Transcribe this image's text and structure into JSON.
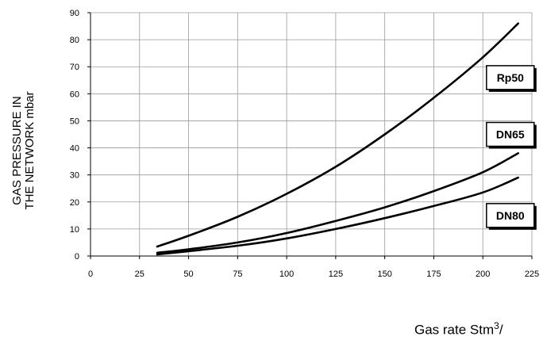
{
  "chart_data": {
    "type": "line",
    "title": "",
    "ylabel_lines": [
      "GAS PRESSURE IN",
      "THE NETWORK mbar"
    ],
    "xlabel": "Gas rate  Stm",
    "xlabel_sup": "3",
    "xlabel_tail": "/",
    "xlim": [
      0,
      225
    ],
    "ylim": [
      0,
      90
    ],
    "xticks": [
      0,
      25,
      50,
      75,
      100,
      125,
      150,
      175,
      200,
      225
    ],
    "yticks": [
      0,
      10,
      20,
      30,
      40,
      50,
      60,
      70,
      80,
      90
    ],
    "grid": true,
    "series": [
      {
        "name": "Rp50",
        "x": [
          34,
          50,
          75,
          100,
          125,
          150,
          175,
          200,
          218
        ],
        "y": [
          3.5,
          7.5,
          14.5,
          23,
          33,
          45,
          58.5,
          73.5,
          86
        ]
      },
      {
        "name": "DN65",
        "x": [
          34,
          50,
          75,
          100,
          125,
          150,
          175,
          200,
          218
        ],
        "y": [
          1.2,
          2.5,
          5,
          8.5,
          13,
          18,
          24,
          31,
          38
        ]
      },
      {
        "name": "DN80",
        "x": [
          34,
          50,
          75,
          100,
          125,
          150,
          175,
          200,
          218
        ],
        "y": [
          0.6,
          1.8,
          3.8,
          6.5,
          10,
          14,
          18.5,
          23.5,
          29
        ]
      }
    ],
    "labels": [
      {
        "series": "Rp50",
        "text": "Rp50",
        "x": 214,
        "y": 66
      },
      {
        "series": "DN65",
        "text": "DN65",
        "x": 214,
        "y": 45
      },
      {
        "series": "DN80",
        "text": "DN80",
        "x": 214,
        "y": 15
      }
    ]
  }
}
